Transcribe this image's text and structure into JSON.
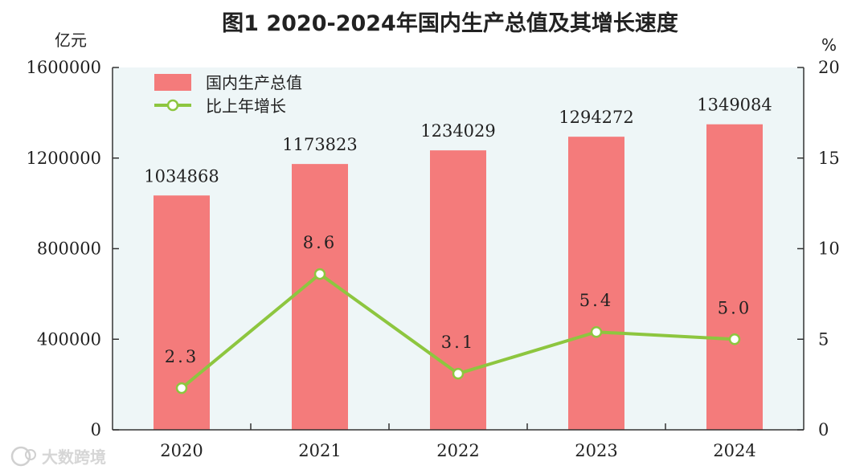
{
  "chart_data": {
    "type": "bar",
    "title": "图1    2020-2024年国内生产总值及其增长速度",
    "y_left_unit": "亿元",
    "y_right_unit": "%",
    "categories": [
      "2020",
      "2021",
      "2022",
      "2023",
      "2024"
    ],
    "series": [
      {
        "name": "国内生产总值",
        "type": "bar",
        "axis": "left",
        "color": "#f47b7b",
        "values": [
          1034868,
          1173823,
          1234029,
          1294272,
          1349084
        ],
        "labels": [
          "1034868",
          "1173823",
          "1234029",
          "1294272",
          "1349084"
        ]
      },
      {
        "name": "比上年增长",
        "type": "line",
        "axis": "right",
        "color": "#8dc63f",
        "values": [
          2.3,
          8.6,
          3.1,
          5.4,
          5.0
        ],
        "labels": [
          "2.3",
          "8.6",
          "3.1",
          "5.4",
          "5.0"
        ]
      }
    ],
    "y_left": {
      "min": 0,
      "max": 1600000,
      "ticks": [
        0,
        400000,
        800000,
        1200000,
        1600000
      ]
    },
    "y_right": {
      "min": 0,
      "max": 20,
      "ticks": [
        0,
        5,
        10,
        15,
        20
      ]
    },
    "legend": "top-left",
    "plot_background": "#eef6f7",
    "watermark": "大数跨境"
  }
}
